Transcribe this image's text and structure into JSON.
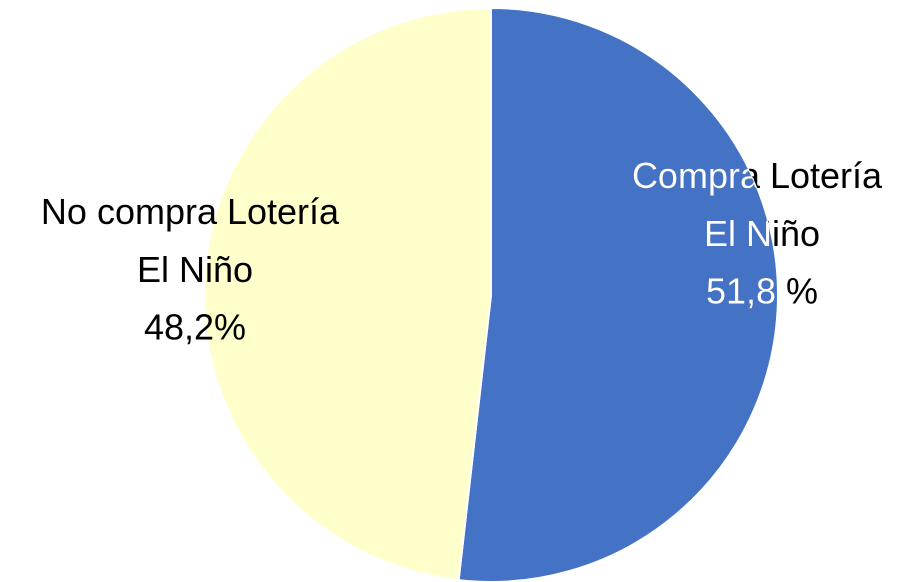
{
  "chart_data": {
    "type": "pie",
    "categories": [
      "Compra Lotería El Niño",
      "No compra Lotería El Niño"
    ],
    "values": [
      51.8,
      48.2
    ],
    "value_labels": [
      "51,8 %",
      "48,2%"
    ],
    "colors": [
      "#4472c4",
      "#ffffcc"
    ]
  }
}
